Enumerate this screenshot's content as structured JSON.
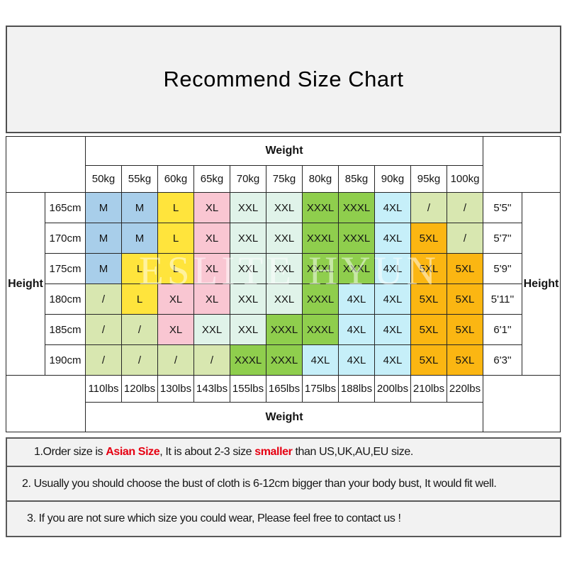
{
  "title": "Recommend Size Chart",
  "watermark": "ESLITE HYUN",
  "chart_data": {
    "type": "table",
    "title": "Recommend Size Chart",
    "top_header": "Weight",
    "bottom_header": "Weight",
    "left_header": "Height",
    "right_header": "Height",
    "weight_kg": [
      "50kg",
      "55kg",
      "60kg",
      "65kg",
      "70kg",
      "75kg",
      "80kg",
      "85kg",
      "90kg",
      "95kg",
      "100kg"
    ],
    "weight_lbs": [
      "110lbs",
      "120lbs",
      "130lbs",
      "143lbs",
      "155lbs",
      "165lbs",
      "175lbs",
      "188lbs",
      "200lbs",
      "210lbs",
      "220lbs"
    ],
    "rows": [
      {
        "height_cm": "165cm",
        "height_ft": "5'5''",
        "sizes": [
          "M",
          "M",
          "L",
          "XL",
          "XXL",
          "XXL",
          "XXXL",
          "XXXL",
          "4XL",
          "/",
          "/"
        ]
      },
      {
        "height_cm": "170cm",
        "height_ft": "5'7''",
        "sizes": [
          "M",
          "M",
          "L",
          "XL",
          "XXL",
          "XXL",
          "XXXL",
          "XXXL",
          "4XL",
          "5XL",
          "/"
        ]
      },
      {
        "height_cm": "175cm",
        "height_ft": "5'9''",
        "sizes": [
          "M",
          "L",
          "L",
          "XL",
          "XXL",
          "XXL",
          "XXXL",
          "XXXL",
          "4XL",
          "5XL",
          "5XL"
        ]
      },
      {
        "height_cm": "180cm",
        "height_ft": "5'11''",
        "sizes": [
          "/",
          "L",
          "XL",
          "XL",
          "XXL",
          "XXL",
          "XXXL",
          "4XL",
          "4XL",
          "5XL",
          "5XL"
        ]
      },
      {
        "height_cm": "185cm",
        "height_ft": "6'1''",
        "sizes": [
          "/",
          "/",
          "XL",
          "XXL",
          "XXL",
          "XXXL",
          "XXXL",
          "4XL",
          "4XL",
          "5XL",
          "5XL"
        ]
      },
      {
        "height_cm": "190cm",
        "height_ft": "6'3''",
        "sizes": [
          "/",
          "/",
          "/",
          "/",
          "XXXL",
          "XXXL",
          "4XL",
          "4XL",
          "4XL",
          "5XL",
          "5XL"
        ]
      }
    ],
    "size_colors": {
      "M": "#a8ceea",
      "L": "#ffe43c",
      "XL": "#f9c6d2",
      "XXL": "#e0f3e9",
      "XXXL": "#8fce4d",
      "4XL": "#c6eff9",
      "5XL": "#fbb612",
      "/": "#d8e7b0"
    }
  },
  "notes": [
    {
      "parts": [
        {
          "text": "1.Order size is ",
          "red": false
        },
        {
          "text": "Asian Size",
          "red": true
        },
        {
          "text": ", It is about 2-3 size ",
          "red": false
        },
        {
          "text": "smaller",
          "red": true
        },
        {
          "text": " than US,UK,AU,EU size.",
          "red": false
        }
      ]
    },
    {
      "parts": [
        {
          "text": "2. Usually you should choose the bust of cloth is 6-12cm bigger than your body bust, It would fit well.",
          "red": false
        }
      ]
    },
    {
      "parts": [
        {
          "text": "3. If you are not sure which size you could wear, Please feel free to contact us !",
          "red": false
        }
      ]
    }
  ],
  "colors": {
    "note_red": "#e60012",
    "panel_bg": "#f2f2f2",
    "panel_border": "#4f4f4f",
    "table_border": "#262626",
    "text": "#141414",
    "watermark": "rgba(255,255,255,0.5)"
  }
}
